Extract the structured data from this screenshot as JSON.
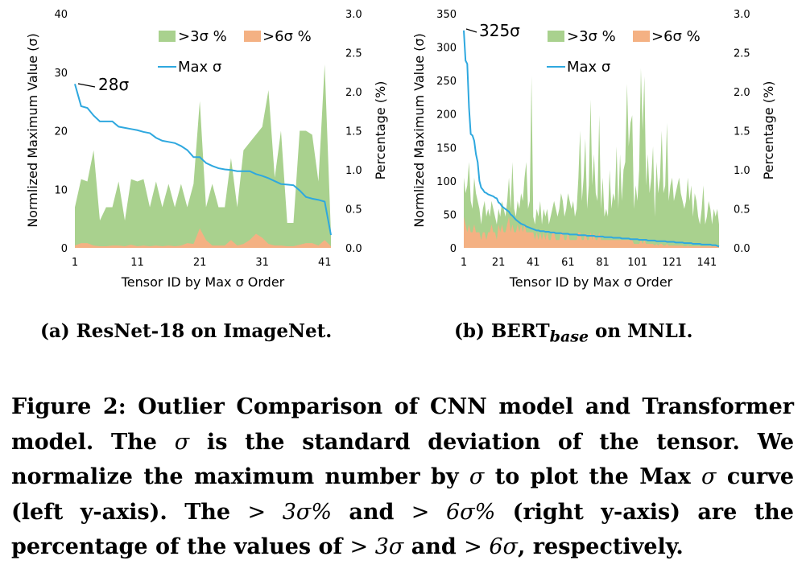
{
  "chart_data": [
    {
      "type": "area+line",
      "id": "resnet",
      "xlabel": "Tensor ID by Max σ Order",
      "ylabel_left": "Normlized Maximum Value (σ)",
      "ylabel_right": "Percentage (%)",
      "xticks": [
        "1",
        "11",
        "21",
        "31",
        "41"
      ],
      "yticks_left": [
        "0",
        "10",
        "20",
        "30",
        "40"
      ],
      "yticks_right": [
        "0.0",
        "0.5",
        "1.0",
        "1.5",
        "2.0",
        "2.5",
        "3.0"
      ],
      "ylim_left": [
        0,
        40
      ],
      "ylim_right": [
        0,
        3.0
      ],
      "x": [
        1,
        2,
        3,
        4,
        5,
        6,
        7,
        8,
        9,
        10,
        11,
        12,
        13,
        14,
        15,
        16,
        17,
        18,
        19,
        20,
        21,
        22,
        23,
        24,
        25,
        26,
        27,
        28,
        29,
        30,
        31,
        32,
        33,
        34,
        35,
        36,
        37,
        38,
        39,
        40,
        41,
        42
      ],
      "legend": [
        "&gt;3σ %",
        "&gt;6σ %",
        "Max σ"
      ],
      "series": [
        {
          "name": ">3σ %",
          "axis": "right",
          "color": "#a9d18e",
          "values": [
            0.52,
            0.88,
            0.85,
            1.25,
            0.35,
            0.52,
            0.52,
            0.85,
            0.35,
            0.88,
            0.85,
            0.88,
            0.52,
            0.85,
            0.52,
            0.82,
            0.52,
            0.82,
            0.52,
            0.82,
            1.88,
            0.52,
            0.82,
            0.52,
            0.52,
            1.15,
            0.52,
            1.25,
            1.35,
            1.45,
            1.55,
            2.02,
            0.9,
            1.5,
            0.32,
            0.32,
            1.5,
            1.5,
            1.45,
            0.85,
            2.35,
            0.18
          ]
        },
        {
          "name": ">6σ %",
          "axis": "right",
          "color": "#f4b183",
          "values": [
            0.03,
            0.06,
            0.06,
            0.03,
            0.02,
            0.02,
            0.03,
            0.03,
            0.02,
            0.04,
            0.02,
            0.03,
            0.02,
            0.03,
            0.02,
            0.03,
            0.02,
            0.03,
            0.06,
            0.05,
            0.25,
            0.1,
            0.03,
            0.03,
            0.03,
            0.1,
            0.03,
            0.05,
            0.1,
            0.18,
            0.13,
            0.05,
            0.03,
            0.03,
            0.02,
            0.02,
            0.04,
            0.06,
            0.06,
            0.03,
            0.1,
            0.02
          ]
        },
        {
          "name": "Max σ",
          "axis": "left",
          "color": "#2ea8df",
          "values": [
            28,
            24.2,
            23.9,
            22.6,
            21.6,
            21.6,
            21.6,
            20.7,
            20.5,
            20.3,
            20.1,
            19.8,
            19.6,
            18.8,
            18.3,
            18.1,
            17.9,
            17.4,
            16.7,
            15.5,
            15.5,
            14.5,
            14.0,
            13.6,
            13.4,
            13.3,
            13.1,
            13.1,
            13.1,
            12.6,
            12.3,
            11.9,
            11.4,
            10.9,
            10.8,
            10.7,
            9.8,
            8.7,
            8.4,
            8.2,
            7.9,
            2.2
          ]
        }
      ],
      "annotation": "28σ",
      "grid": false,
      "legend_position": "top-right"
    },
    {
      "type": "area+line",
      "id": "bert",
      "xlabel": "Tensor ID by Max σ Order",
      "ylabel_left": "Normlized Maximum Value (σ)",
      "ylabel_right": "Percentage (%)",
      "xticks": [
        "1",
        "21",
        "41",
        "61",
        "81",
        "101",
        "121",
        "141"
      ],
      "yticks_left": [
        "0",
        "50",
        "100",
        "150",
        "200",
        "250",
        "300",
        "350"
      ],
      "yticks_right": [
        "0.0",
        "0.5",
        "1.0",
        "1.5",
        "2.0",
        "2.5",
        "3.0"
      ],
      "ylim_left": [
        0,
        350
      ],
      "ylim_right": [
        0,
        3.0
      ],
      "x_range": [
        1,
        148
      ],
      "legend": [
        "&gt;3σ %",
        "&gt;6σ %",
        "Max σ"
      ],
      "annotation": "325σ",
      "grid": false,
      "legend_position": "top-right",
      "series": [
        {
          "name": ">3σ %",
          "axis": "right",
          "color": "#a9d18e",
          "values": [
            0.9,
            0.7,
            0.8,
            1.1,
            0.6,
            0.5,
            0.9,
            0.7,
            0.6,
            0.5,
            0.3,
            0.5,
            0.6,
            0.4,
            0.5,
            0.4,
            0.6,
            0.5,
            0.4,
            0.3,
            0.5,
            0.4,
            0.6,
            0.5,
            0.4,
            0.6,
            0.9,
            0.5,
            1.1,
            0.5,
            0.4,
            0.6,
            0.5,
            0.7,
            0.6,
            0.9,
            1.1,
            0.5,
            0.6,
            2.2,
            0.4,
            0.3,
            0.5,
            0.4,
            0.6,
            0.3,
            0.5,
            0.4,
            0.5,
            0.3,
            0.4,
            0.5,
            0.6,
            0.5,
            0.4,
            0.5,
            0.7,
            0.6,
            0.4,
            0.5,
            0.7,
            0.6,
            0.5,
            0.6,
            0.4,
            0.5,
            0.9,
            1.5,
            0.6,
            0.9,
            1.4,
            0.5,
            0.8,
            1.9,
            0.8,
            1.2,
            0.7,
            0.6,
            1.7,
            0.5,
            0.9,
            0.4,
            0.5,
            0.4,
            1.0,
            0.5,
            0.7,
            0.6,
            1.3,
            0.5,
            1.2,
            0.6,
            1.0,
            1.1,
            2.1,
            1.3,
            1.6,
            1.7,
            0.5,
            0.8,
            0.6,
            1.0,
            2.3,
            1.5,
            2.2,
            0.8,
            1.2,
            0.7,
            0.9,
            1.3,
            0.4,
            1.1,
            0.7,
            0.9,
            1.5,
            0.7,
            0.8,
            1.6,
            0.6,
            0.8,
            0.9,
            0.6,
            0.7,
            0.8,
            0.9,
            0.7,
            0.6,
            0.5,
            0.6,
            0.9,
            0.6,
            0.8,
            0.4,
            0.7,
            0.6,
            0.4,
            0.3,
            0.5,
            0.8,
            0.3,
            0.4,
            0.6,
            0.5,
            0.3,
            0.5,
            0.4,
            0.5,
            0.3
          ]
        },
        {
          "name": ">6σ %",
          "axis": "right",
          "color": "#f4b183",
          "values": [
            0.4,
            0.3,
            0.2,
            0.3,
            0.2,
            0.2,
            0.3,
            0.2,
            0.2,
            0.2,
            0.1,
            0.2,
            0.2,
            0.1,
            0.2,
            0.2,
            0.3,
            0.2,
            0.2,
            0.1,
            0.3,
            0.2,
            0.3,
            0.2,
            0.2,
            0.3,
            0.4,
            0.2,
            0.3,
            0.2,
            0.2,
            0.3,
            0.2,
            0.3,
            0.2,
            0.3,
            0.2,
            0.2,
            0.2,
            0.2,
            0.2,
            0.1,
            0.2,
            0.1,
            0.2,
            0.1,
            0.2,
            0.1,
            0.2,
            0.1,
            0.1,
            0.2,
            0.2,
            0.1,
            0.1,
            0.1,
            0.2,
            0.2,
            0.1,
            0.1,
            0.2,
            0.1,
            0.1,
            0.1,
            0.1,
            0.1,
            0.2,
            0.2,
            0.1,
            0.1,
            0.2,
            0.1,
            0.1,
            0.2,
            0.1,
            0.2,
            0.1,
            0.1,
            0.2,
            0.1,
            0.1,
            0.1,
            0.1,
            0.1,
            0.1,
            0.1,
            0.1,
            0.1,
            0.1,
            0.1,
            0.1,
            0.1,
            0.1,
            0.1,
            0.1,
            0.1,
            0.1,
            0.1,
            0.05,
            0.05,
            0.05,
            0.05,
            0.1,
            0.05,
            0.1,
            0.05,
            0.05,
            0.05,
            0.05,
            0.05,
            0.03,
            0.05,
            0.03,
            0.05,
            0.05,
            0.03,
            0.03,
            0.05,
            0.03,
            0.03,
            0.03,
            0.03,
            0.03,
            0.03,
            0.03,
            0.03,
            0.03,
            0.02,
            0.02,
            0.03,
            0.02,
            0.02,
            0.02,
            0.02,
            0.02,
            0.02,
            0.02,
            0.02,
            0.02,
            0.02,
            0.02,
            0.02,
            0.02,
            0.02,
            0.02,
            0.02,
            0.02,
            0.02
          ]
        },
        {
          "name": "Max σ",
          "axis": "left",
          "color": "#2ea8df",
          "values": [
            325,
            280,
            275,
            210,
            170,
            168,
            160,
            140,
            128,
            100,
            90,
            87,
            83,
            82,
            80,
            79,
            78,
            77,
            75,
            74,
            68,
            66,
            62,
            60,
            58,
            56,
            54,
            50,
            48,
            45,
            42,
            40,
            38,
            36,
            35,
            34,
            32,
            31,
            30,
            29,
            28,
            27,
            26,
            26,
            25,
            25,
            25,
            24,
            24,
            24,
            23,
            23,
            23,
            22,
            22,
            22,
            22,
            21,
            21,
            21,
            21,
            20,
            20,
            20,
            20,
            20,
            19,
            19,
            19,
            19,
            19,
            18,
            18,
            18,
            18,
            18,
            17,
            17,
            17,
            17,
            17,
            16,
            16,
            16,
            16,
            16,
            15,
            15,
            15,
            15,
            15,
            14,
            14,
            14,
            14,
            14,
            13,
            13,
            13,
            13,
            13,
            12,
            12,
            12,
            12,
            12,
            11,
            11,
            11,
            11,
            11,
            10,
            10,
            10,
            10,
            10,
            10,
            9,
            9,
            9,
            9,
            9,
            8,
            8,
            8,
            8,
            8,
            7,
            7,
            7,
            7,
            7,
            6,
            6,
            6,
            6,
            6,
            5,
            5,
            5,
            5,
            5,
            5,
            4,
            4,
            4,
            3,
            2
          ]
        }
      ]
    }
  ],
  "subcaptions": {
    "a": "(a) ResNet-18 on ImageNet.",
    "b_prefix": "(b) BERT",
    "b_sub": "base",
    "b_suffix": " on MNLI."
  },
  "figure_caption": {
    "p1": "Figure 2: Outlier Comparison of CNN model and Transformer model. The ",
    "sigma1": "σ",
    "p2": " is the standard deviation of the tensor. We normalize the maximum number by ",
    "sigma2": "σ",
    "p3": " to plot the Max ",
    "sigma3": "σ",
    "p4": " curve (left y-axis). The ",
    "m1": "> 3σ%",
    "p5": " and ",
    "m2": "> 6σ%",
    "p6": " (right y-axis) are the percentage of the values of ",
    "m3": "> 3σ",
    "p7": " and ",
    "m4": "> 6σ",
    "p8": ", respectively."
  }
}
